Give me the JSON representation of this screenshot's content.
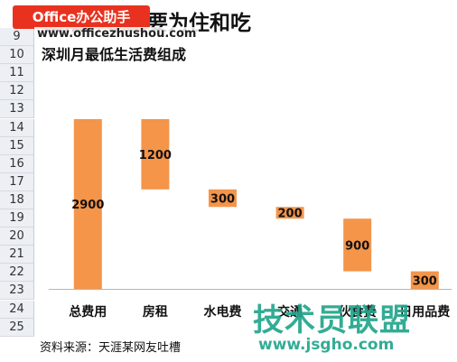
{
  "banner": {
    "brand": "Office办公助手",
    "url": "www.officezhushou.com"
  },
  "row_numbers": [
    "9",
    "10",
    "11",
    "12",
    "13",
    "14",
    "15",
    "16",
    "17",
    "18",
    "19",
    "20",
    "21",
    "22",
    "23",
    "24",
    "25"
  ],
  "heading": "生活开销主要为住和吃",
  "chart_data": {
    "type": "bar",
    "subtype": "waterfall",
    "title": "深圳月最低生活费组成",
    "categories": [
      "总费用",
      "房租",
      "水电费",
      "交通",
      "伙食费",
      "日用品费"
    ],
    "values": [
      2900,
      1200,
      300,
      200,
      900,
      300
    ],
    "base": [
      0,
      1700,
      1400,
      1200,
      300,
      0
    ],
    "ylim": [
      0,
      2900
    ],
    "color": "#f4954a",
    "grid": false,
    "legend": "none",
    "xlabel": "",
    "ylabel": ""
  },
  "source_note": "资料来源：天涯某网友吐槽",
  "watermark": {
    "brand": "技术员联盟",
    "url": "www.jsgho.com"
  }
}
